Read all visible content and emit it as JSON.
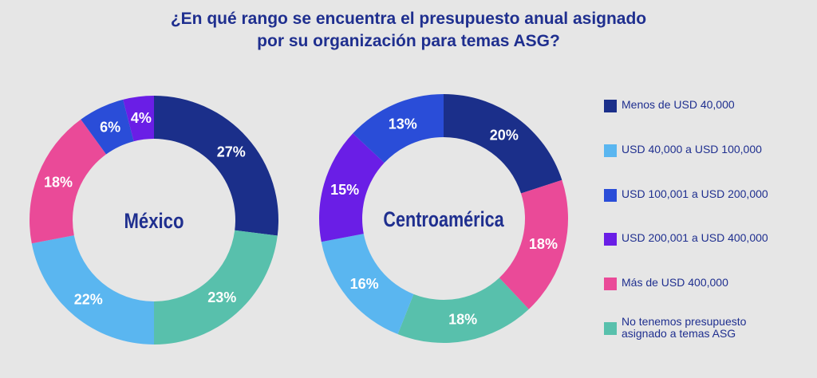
{
  "title": {
    "line1": "¿En qué rango se encuentra el presupuesto anual asignado",
    "line2": "por su organización para temas ASG?"
  },
  "colors": {
    "text": "#1f2f8f",
    "background": "#e6e6e6",
    "hole": "#e6e6e6"
  },
  "legend": [
    {
      "label": "Menos de USD 40,000",
      "color": "#1b2f8a"
    },
    {
      "label": "USD 40,000 a USD 100,000",
      "color": "#5ab6f0"
    },
    {
      "label": "USD 100,001 a USD 200,000",
      "color": "#2a4dd8"
    },
    {
      "label": "USD 200,001 a USD 400,000",
      "color": "#6a1ee6"
    },
    {
      "label": "Más de USD 400,000",
      "color": "#ea4a98"
    },
    {
      "label": "No tenemos presupuesto asignado a temas ASG",
      "color": "#58c0ac"
    }
  ],
  "chart_data": [
    {
      "type": "pie",
      "title": "México",
      "categories": [
        "Menos de USD 40,000",
        "No tenemos presupuesto asignado a temas ASG",
        "USD 40,000 a USD 100,000",
        "Más de USD 400,000",
        "USD 100,001 a USD 200,000",
        "USD 200,001 a USD 400,000"
      ],
      "values": [
        27,
        23,
        22,
        18,
        6,
        4
      ],
      "labels": [
        "27%",
        "23%",
        "22%",
        "18%",
        "6%",
        "4%"
      ],
      "colors": [
        "#1b2f8a",
        "#58c0ac",
        "#5ab6f0",
        "#ea4a98",
        "#2a4dd8",
        "#6a1ee6"
      ]
    },
    {
      "type": "pie",
      "title": "Centroamérica",
      "categories": [
        "Menos de USD 40,000",
        "Más de USD 400,000",
        "No tenemos presupuesto asignado a temas ASG",
        "USD 40,000 a USD 100,000",
        "USD 200,001 a USD 400,000",
        "USD 100,001 a USD 200,000"
      ],
      "values": [
        20,
        18,
        18,
        16,
        15,
        13
      ],
      "labels": [
        "20%",
        "18%",
        "18%",
        "16%",
        "15%",
        "13%"
      ],
      "colors": [
        "#1b2f8a",
        "#ea4a98",
        "#58c0ac",
        "#5ab6f0",
        "#6a1ee6",
        "#2a4dd8"
      ]
    }
  ]
}
